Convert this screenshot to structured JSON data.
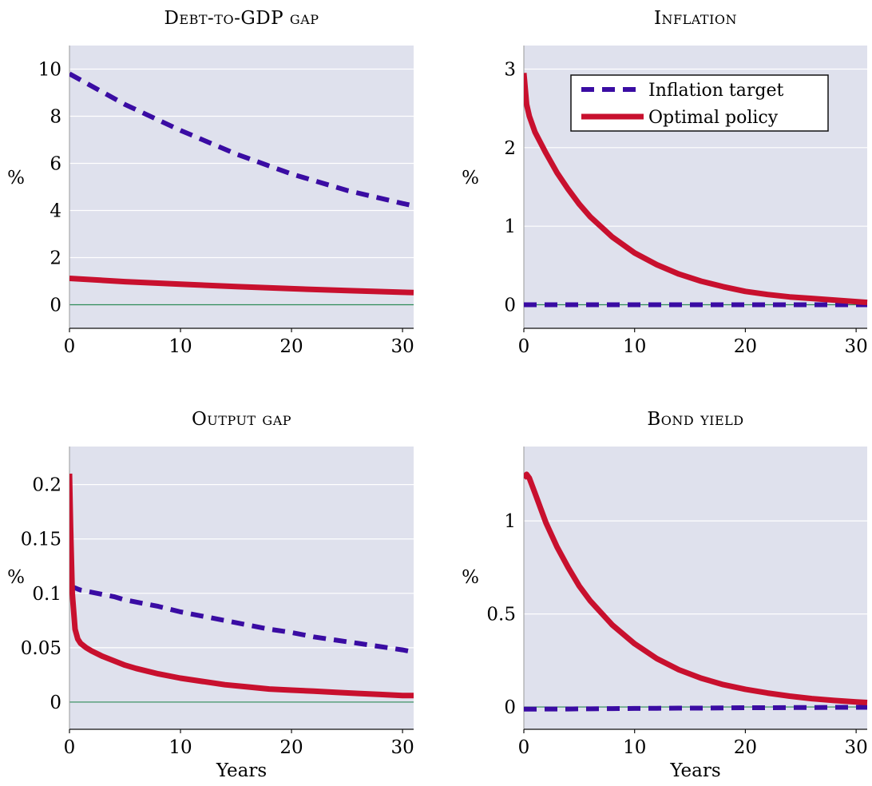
{
  "colors": {
    "panel_bg": "#dfe1ed",
    "grid": "#ffffff",
    "zero_line": "#2e8b57",
    "inflation_target": "#3a0ca3",
    "optimal_policy": "#c8102e"
  },
  "legend": {
    "placement": "top-right of Inflation panel",
    "entries": [
      "Inflation target",
      "Optimal policy"
    ]
  },
  "chart_data": [
    {
      "type": "line",
      "title": "Debt-to-GDP gap",
      "xlabel": "",
      "ylabel": "%",
      "xlim": [
        0,
        31
      ],
      "ylim": [
        -1,
        11
      ],
      "xticks": [
        0,
        10,
        20,
        30
      ],
      "xtick_labels": [
        "0",
        "10",
        "20",
        "30"
      ],
      "yticks": [
        0,
        2,
        4,
        6,
        8,
        10
      ],
      "ytick_labels": [
        "0",
        "2",
        "4",
        "6",
        "8",
        "10"
      ],
      "grid": true,
      "x": [
        0,
        5,
        10,
        15,
        20,
        25,
        30,
        31
      ],
      "series": [
        {
          "name": "Inflation target",
          "style": "dashed",
          "values": [
            9.8,
            8.5,
            7.4,
            6.4,
            5.55,
            4.85,
            4.3,
            4.2
          ]
        },
        {
          "name": "Optimal policy",
          "style": "solid",
          "values": [
            1.12,
            0.98,
            0.87,
            0.77,
            0.68,
            0.6,
            0.53,
            0.52
          ]
        }
      ]
    },
    {
      "type": "line",
      "title": "Inflation",
      "xlabel": "",
      "ylabel": "%",
      "xlim": [
        0,
        31
      ],
      "ylim": [
        -0.3,
        3.3
      ],
      "xticks": [
        0,
        10,
        20,
        30
      ],
      "xtick_labels": [
        "0",
        "10",
        "20",
        "30"
      ],
      "yticks": [
        0,
        1,
        2,
        3
      ],
      "ytick_labels": [
        "0",
        "1",
        "2",
        "3"
      ],
      "grid": true,
      "x": [
        0,
        0.25,
        0.5,
        1,
        2,
        3,
        4,
        5,
        6,
        8,
        10,
        12,
        14,
        16,
        18,
        20,
        22,
        24,
        26,
        28,
        30,
        31
      ],
      "series": [
        {
          "name": "Inflation target",
          "style": "dashed",
          "values": [
            0,
            0,
            0,
            0,
            0,
            0,
            0,
            0,
            0,
            0,
            0,
            0,
            0,
            0,
            0,
            0,
            0,
            0,
            0,
            0,
            0,
            0
          ]
        },
        {
          "name": "Optimal policy",
          "style": "solid",
          "values": [
            2.95,
            2.55,
            2.4,
            2.2,
            1.93,
            1.68,
            1.47,
            1.28,
            1.12,
            0.86,
            0.66,
            0.51,
            0.39,
            0.3,
            0.23,
            0.17,
            0.13,
            0.1,
            0.08,
            0.06,
            0.04,
            0.03
          ]
        }
      ]
    },
    {
      "type": "line",
      "title": "Output gap",
      "xlabel": "Years",
      "ylabel": "%",
      "xlim": [
        0,
        31
      ],
      "ylim": [
        -0.025,
        0.235
      ],
      "xticks": [
        0,
        10,
        20,
        30
      ],
      "xtick_labels": [
        "0",
        "10",
        "20",
        "30"
      ],
      "yticks": [
        0,
        0.05,
        0.1,
        0.15,
        0.2
      ],
      "ytick_labels": [
        "0",
        "0.05",
        "0.1",
        "0.15",
        "0.2"
      ],
      "grid": true,
      "x": [
        0,
        0.1,
        0.25,
        0.5,
        0.75,
        1,
        1.5,
        2,
        3,
        4,
        5,
        6,
        8,
        10,
        12,
        14,
        16,
        18,
        20,
        22,
        24,
        26,
        28,
        30,
        31
      ],
      "series": [
        {
          "name": "Inflation target",
          "style": "dashed",
          "values": [
            0.106,
            0.106,
            0.106,
            0.105,
            0.104,
            0.103,
            0.102,
            0.101,
            0.099,
            0.097,
            0.094,
            0.092,
            0.088,
            0.083,
            0.079,
            0.075,
            0.071,
            0.067,
            0.064,
            0.06,
            0.057,
            0.054,
            0.051,
            0.048,
            0.046
          ]
        },
        {
          "name": "Optimal policy",
          "style": "solid",
          "values": [
            0.21,
            0.16,
            0.1,
            0.067,
            0.058,
            0.054,
            0.05,
            0.047,
            0.042,
            0.038,
            0.034,
            0.031,
            0.026,
            0.022,
            0.019,
            0.016,
            0.014,
            0.012,
            0.011,
            0.01,
            0.009,
            0.008,
            0.007,
            0.006,
            0.006
          ]
        }
      ]
    },
    {
      "type": "line",
      "title": "Bond yield",
      "xlabel": "Years",
      "ylabel": "%",
      "xlim": [
        0,
        31
      ],
      "ylim": [
        -0.12,
        1.4
      ],
      "xticks": [
        0,
        10,
        20,
        30
      ],
      "xtick_labels": [
        "0",
        "10",
        "20",
        "30"
      ],
      "yticks": [
        0,
        0.5,
        1
      ],
      "ytick_labels": [
        "0",
        "0.5",
        "1"
      ],
      "grid": true,
      "x": [
        0,
        0.25,
        0.5,
        1,
        2,
        3,
        4,
        5,
        6,
        8,
        10,
        12,
        14,
        16,
        18,
        20,
        22,
        24,
        26,
        28,
        30,
        31
      ],
      "series": [
        {
          "name": "Inflation target",
          "style": "dashed",
          "values": [
            -0.012,
            -0.012,
            -0.012,
            -0.012,
            -0.011,
            -0.011,
            -0.011,
            -0.01,
            -0.01,
            -0.009,
            -0.008,
            -0.007,
            -0.006,
            -0.006,
            -0.005,
            -0.004,
            -0.004,
            -0.003,
            -0.003,
            -0.002,
            -0.002,
            -0.002
          ]
        },
        {
          "name": "Optimal policy",
          "style": "solid",
          "values": [
            1.23,
            1.25,
            1.23,
            1.15,
            0.99,
            0.86,
            0.75,
            0.65,
            0.57,
            0.44,
            0.34,
            0.26,
            0.2,
            0.155,
            0.12,
            0.095,
            0.075,
            0.058,
            0.045,
            0.035,
            0.027,
            0.024
          ]
        }
      ]
    }
  ]
}
